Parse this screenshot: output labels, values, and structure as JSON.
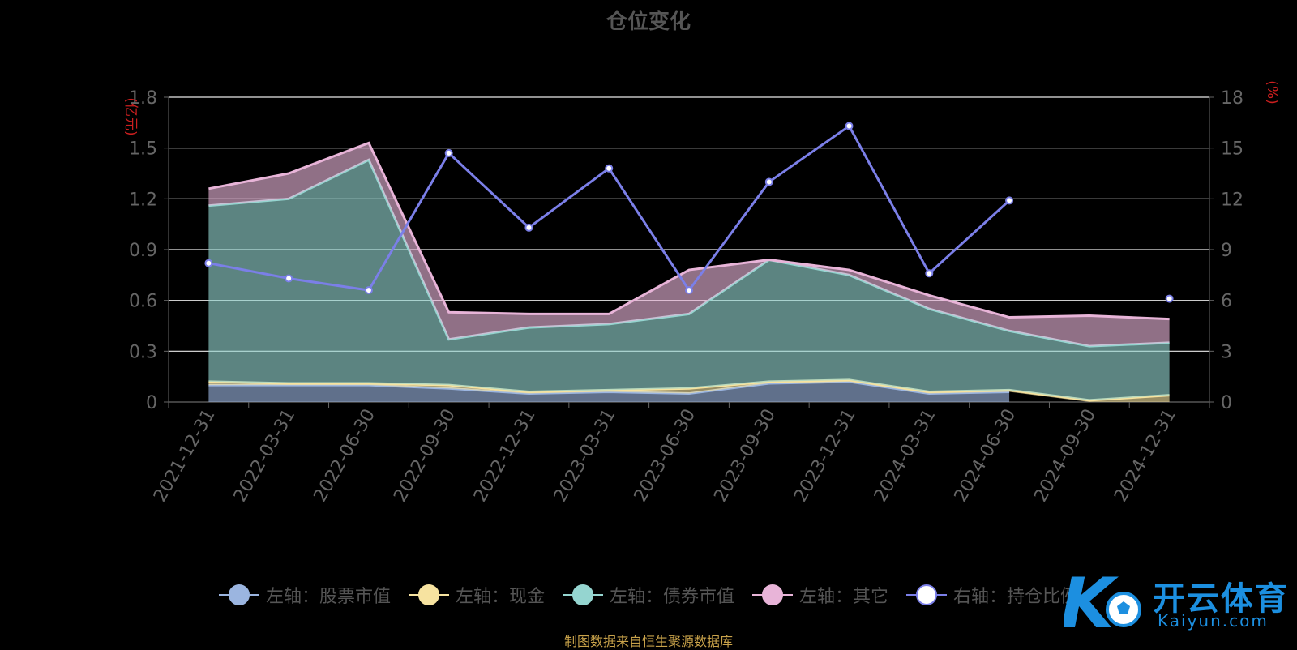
{
  "chart_data": {
    "type": "area",
    "title": "仓位变化",
    "categories": [
      "2021-12-31",
      "2022-03-31",
      "2022-06-30",
      "2022-09-30",
      "2022-12-31",
      "2023-03-31",
      "2023-06-30",
      "2023-09-30",
      "2023-12-31",
      "2024-03-31",
      "2024-06-30",
      "2024-09-30",
      "2024-12-31"
    ],
    "left_axis": {
      "label": "(亿元)",
      "ylim": [
        0,
        1.8
      ],
      "ticks": [
        "0",
        "0.3",
        "0.6",
        "0.9",
        "1.2",
        "1.5",
        "1.8"
      ]
    },
    "right_axis": {
      "label": "(%)",
      "ylim": [
        0,
        18
      ],
      "ticks": [
        "0",
        "3",
        "6",
        "9",
        "12",
        "15",
        "18"
      ]
    },
    "stacked": true,
    "grid": true,
    "legend_position": "bottom",
    "series": [
      {
        "name": "左轴：股票市值",
        "axis": "left",
        "kind": "stacked-area",
        "color": "#9bb5e0",
        "values": [
          0.1,
          0.1,
          0.1,
          0.08,
          0.05,
          0.06,
          0.05,
          0.11,
          0.12,
          0.05,
          0.06,
          null,
          null
        ]
      },
      {
        "name": "左轴：现金",
        "axis": "left",
        "kind": "stacked-area",
        "color": "#f7e3a0",
        "values": [
          0.02,
          0.01,
          0.01,
          0.02,
          0.01,
          0.01,
          0.03,
          0.01,
          0.01,
          0.01,
          0.01,
          0.01,
          0.04
        ]
      },
      {
        "name": "左轴：债券市值",
        "axis": "left",
        "kind": "stacked-area",
        "color": "#95d5d0",
        "values": [
          1.04,
          1.09,
          1.32,
          0.27,
          0.38,
          0.39,
          0.44,
          0.72,
          0.62,
          0.49,
          0.35,
          0.32,
          0.31
        ]
      },
      {
        "name": "左轴：其它",
        "axis": "left",
        "kind": "stacked-area",
        "color": "#e8b4d8",
        "values": [
          0.1,
          0.15,
          0.1,
          0.16,
          0.08,
          0.06,
          0.26,
          0.0,
          0.03,
          0.08,
          0.08,
          0.18,
          0.14
        ]
      },
      {
        "name": "右轴：持仓比例",
        "axis": "right",
        "kind": "line",
        "color": "#7b7fe8",
        "values": [
          8.2,
          7.3,
          6.6,
          14.7,
          10.3,
          13.8,
          6.6,
          13.0,
          16.3,
          7.6,
          11.9,
          null,
          6.1
        ]
      }
    ],
    "source_note": "制图数据来自恒生聚源数据库"
  },
  "watermark": {
    "text": "开云体育",
    "sub": "Kaiyun.com"
  }
}
